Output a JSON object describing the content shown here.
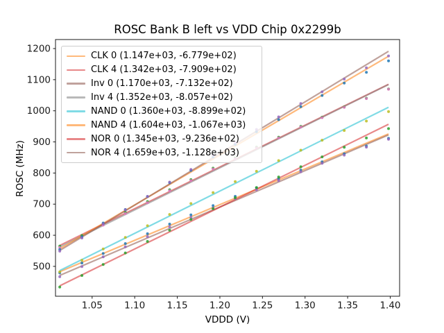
{
  "chart_data": {
    "type": "scatter",
    "title": "ROSC Bank B left vs VDD Chip 0x2299b",
    "xlabel": "VDDD (V)",
    "ylabel": "ROSC (MHz)",
    "xlim": [
      1.007,
      1.411
    ],
    "ylim": [
      404,
      1229
    ],
    "xtick_values": [
      1.05,
      1.1,
      1.15,
      1.2,
      1.25,
      1.3,
      1.35,
      1.4
    ],
    "xtick_labels": [
      "1.05",
      "1.10",
      "1.15",
      "1.20",
      "1.25",
      "1.30",
      "1.35",
      "1.40"
    ],
    "ytick_values": [
      500,
      600,
      700,
      800,
      900,
      1000,
      1100,
      1200
    ],
    "ytick_labels": [
      "500",
      "600",
      "700",
      "800",
      "900",
      "1000",
      "1100",
      "1200"
    ],
    "grid": false,
    "legend_position": "upper left",
    "line_x_range": [
      1.012,
      1.398
    ],
    "x": [
      1.012,
      1.038,
      1.063,
      1.089,
      1.115,
      1.141,
      1.166,
      1.192,
      1.218,
      1.243,
      1.269,
      1.295,
      1.32,
      1.346,
      1.372,
      1.398
    ],
    "series": [
      {
        "name": "CLK 0",
        "legend_label": "CLK 0 (1.147e+03, -6.779e+02)",
        "fit": {
          "slope": 1147,
          "intercept": -677.9
        },
        "line_color": "#ff7f0e",
        "point_color": "#1f77b4",
        "y": [
          478.9,
          510.7,
          541.4,
          573.2,
          605.0,
          635.8,
          665.5,
          695.3,
          725.1,
          752.8,
          781.6,
          809.5,
          836.1,
          862.0,
          886.8,
          911.6
        ]
      },
      {
        "name": "CLK 4",
        "legend_label": "CLK 4 (1.342e+03, -7.909e+02)",
        "fit": {
          "slope": 1342,
          "intercept": -790.9
        },
        "line_color": "#d62728",
        "point_color": "#2ca02c",
        "y": [
          565.2,
          599.1,
          636.7,
          673.5,
          708.4,
          746.3,
          778.9,
          815.8,
          848.7,
          883.2,
          915.1,
          950.0,
          979.5,
          1012.4,
          1040.3,
          1070.2
        ]
      },
      {
        "name": "Inv 0",
        "legend_label": "Inv 0 (1.170e+03, -7.132e+02)",
        "fit": {
          "slope": 1170,
          "intercept": -713.2
        },
        "line_color": "#8c564b",
        "point_color": "#9467bd",
        "y": [
          466.8,
          499.3,
          530.5,
          562.9,
          595.4,
          626.8,
          657.0,
          687.4,
          717.9,
          746.1,
          775.5,
          804.0,
          831.2,
          857.6,
          883.0,
          908.5
        ]
      },
      {
        "name": "Inv 4",
        "legend_label": "Inv 4 (1.352e+03, -8.057e+02)",
        "fit": {
          "slope": 1352,
          "intercept": -805.7
        },
        "line_color": "#7f7f7f",
        "point_color": "#e377c2",
        "y": [
          560.5,
          594.7,
          632.5,
          669.6,
          704.8,
          742.9,
          775.7,
          812.9,
          846.0,
          880.8,
          913.0,
          948.1,
          977.9,
          1011.1,
          1039.2,
          1069.4
        ]
      },
      {
        "name": "NAND 0",
        "legend_label": "NAND 0 (1.360e+03, -8.899e+02)",
        "fit": {
          "slope": 1360,
          "intercept": -889.9
        },
        "line_color": "#17becf",
        "point_color": "#bcbd22",
        "y": [
          482.4,
          519.8,
          555.8,
          593.1,
          630.5,
          666.9,
          701.9,
          737.2,
          772.6,
          805.6,
          839.9,
          873.3,
          905.3,
          936.7,
          967.0,
          997.4
        ]
      },
      {
        "name": "NAND 4",
        "legend_label": "NAND 4 (1.604e+03, -1.067e+03)",
        "fit": {
          "slope": 1604,
          "intercept": -1067
        },
        "line_color": "#ff7f0e",
        "point_color": "#1f77b4",
        "y": [
          554.3,
          595.0,
          639.1,
          682.8,
          724.5,
          769.2,
          808.3,
          852.0,
          891.7,
          932.8,
          971.5,
          1013.2,
          1049.3,
          1089.0,
          1123.7,
          1160.4
        ]
      },
      {
        "name": "NOR 0",
        "legend_label": "NOR 0 (1.345e+03, -9.236e+02)",
        "fit": {
          "slope": 1345,
          "intercept": -923.6
        },
        "line_color": "#d62728",
        "point_color": "#2ca02c",
        "y": [
          433.5,
          470.5,
          506.1,
          543.1,
          580.1,
          616.1,
          650.7,
          685.6,
          720.6,
          753.2,
          787.2,
          820.2,
          851.8,
          882.8,
          912.7,
          942.7
        ]
      },
      {
        "name": "NOR 4",
        "legend_label": "NOR 4 (1.659e+03, -1.128e+03)",
        "fit": {
          "slope": 1659,
          "intercept": -1128
        },
        "line_color": "#8c564b",
        "point_color": "#9467bd",
        "y": [
          548.9,
          591.0,
          636.5,
          681.7,
          724.8,
          770.9,
          811.4,
          856.5,
          897.7,
          940.1,
          980.3,
          1023.4,
          1060.9,
          1102.0,
          1138.2,
          1176.3
        ]
      }
    ],
    "style": {
      "axis_color": "#1a1a1a",
      "line_opacity": 0.55,
      "point_opacity": 0.85,
      "legend_border": "#cccccc"
    }
  }
}
